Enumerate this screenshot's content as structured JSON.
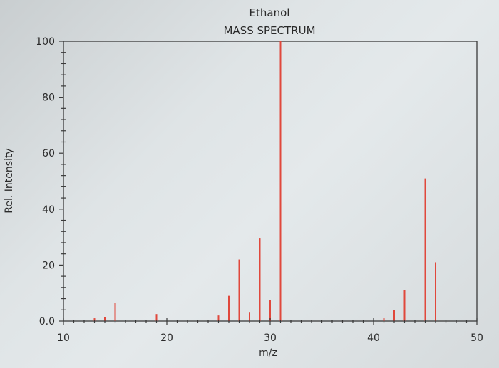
{
  "chart_data": {
    "type": "bar",
    "title": "Ethanol",
    "subtitle": "MASS SPECTRUM",
    "xlabel": "m/z",
    "ylabel": "Rel. Intensity",
    "xlim": [
      10,
      50
    ],
    "ylim": [
      0,
      100
    ],
    "x_ticks": [
      "10",
      "20",
      "30",
      "40",
      "50"
    ],
    "y_ticks": [
      "0.0",
      "20",
      "40",
      "60",
      "80",
      "100"
    ],
    "grid": false,
    "peaks": [
      {
        "mz": 13,
        "intensity": 1
      },
      {
        "mz": 14,
        "intensity": 1.5
      },
      {
        "mz": 15,
        "intensity": 6.5
      },
      {
        "mz": 19,
        "intensity": 2.5
      },
      {
        "mz": 25,
        "intensity": 2
      },
      {
        "mz": 26,
        "intensity": 9
      },
      {
        "mz": 27,
        "intensity": 22
      },
      {
        "mz": 28,
        "intensity": 3
      },
      {
        "mz": 29,
        "intensity": 29.5
      },
      {
        "mz": 30,
        "intensity": 7.5
      },
      {
        "mz": 31,
        "intensity": 100
      },
      {
        "mz": 41,
        "intensity": 1
      },
      {
        "mz": 42,
        "intensity": 4
      },
      {
        "mz": 43,
        "intensity": 11
      },
      {
        "mz": 45,
        "intensity": 51
      },
      {
        "mz": 46,
        "intensity": 21
      }
    ],
    "peak_color": "#e0483c"
  }
}
